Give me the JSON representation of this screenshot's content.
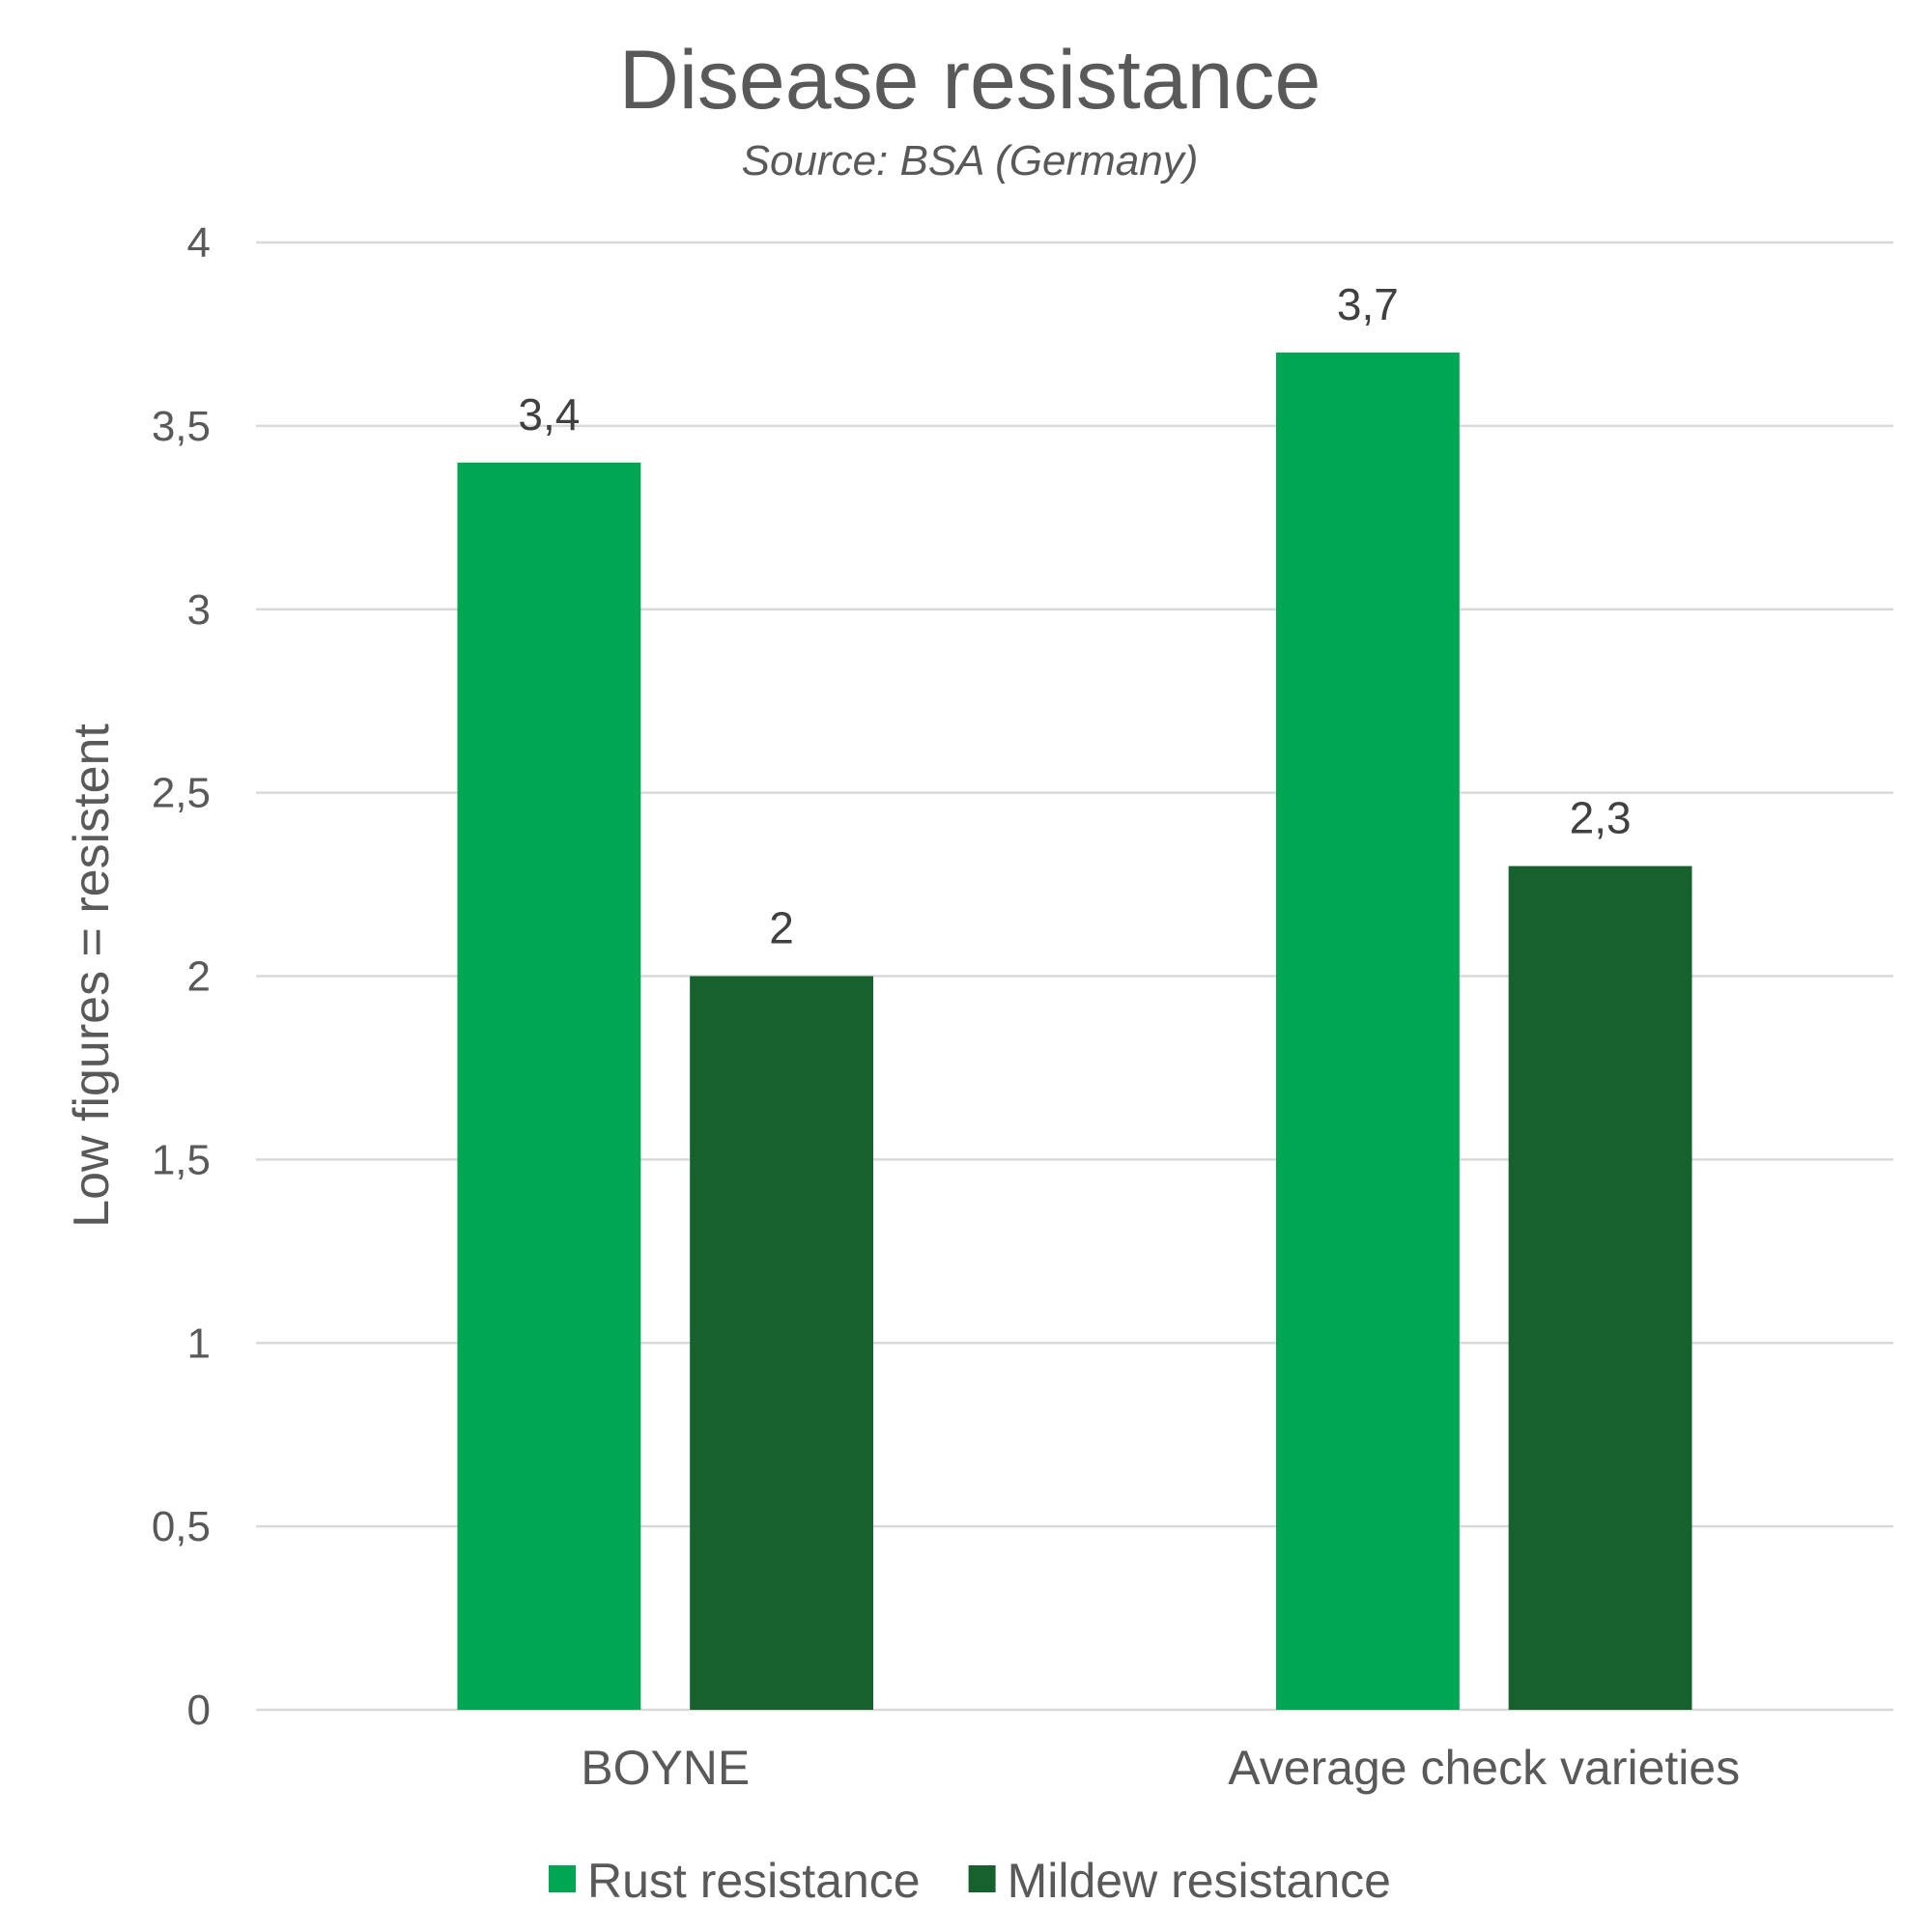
{
  "chart_data": {
    "type": "bar",
    "title": "Disease resistance",
    "subtitle": "Source: BSA (Germany)",
    "xlabel": "",
    "ylabel": "Low figures = resistent",
    "categories": [
      "BOYNE",
      "Average check varieties"
    ],
    "series": [
      {
        "name": "Rust resistance",
        "values": [
          3.4,
          3.7
        ],
        "labels": [
          "3,4",
          "3,7"
        ],
        "color": "#00a651"
      },
      {
        "name": "Mildew resistance",
        "values": [
          2,
          2.3
        ],
        "labels": [
          "2",
          "2,3"
        ],
        "color": "#17612e"
      }
    ],
    "ylim": [
      0,
      4
    ],
    "yticks": [
      0,
      0.5,
      1,
      1.5,
      2,
      2.5,
      3,
      3.5,
      4
    ],
    "ytick_labels": [
      "0",
      "0,5",
      "1",
      "1,5",
      "2",
      "2,5",
      "3",
      "3,5",
      "4"
    ],
    "grid": true,
    "legend_position": "bottom"
  }
}
